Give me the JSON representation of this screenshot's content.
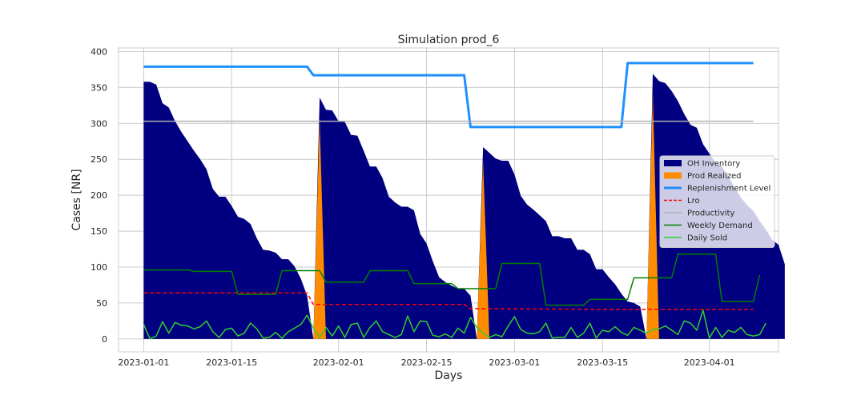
{
  "chart_data": {
    "type": "area",
    "title": "Simulation prod_6",
    "xlabel": "Days",
    "ylabel": "Cases [NR]",
    "x_start": "2023-01-01",
    "x_end": "2023-04-08",
    "xlim": [
      "2022-12-28",
      "2023-04-12"
    ],
    "ylim": [
      -18,
      405
    ],
    "xticks": [
      "2023-01-01",
      "2023-01-15",
      "2023-02-01",
      "2023-02-15",
      "2023-03-01",
      "2023-03-15",
      "2023-04-01"
    ],
    "yticks": [
      0,
      50,
      100,
      150,
      200,
      250,
      300,
      350,
      400
    ],
    "grid": true,
    "legend_position": "center-right",
    "series": [
      {
        "name": "OH Inventory",
        "kind": "area",
        "color": "#000080",
        "values": [
          358,
          358,
          354,
          328,
          322,
          303,
          288,
          275,
          262,
          250,
          236,
          209,
          198,
          198,
          185,
          170,
          167,
          160,
          140,
          124,
          123,
          120,
          111,
          111,
          101,
          84,
          60,
          0,
          336,
          319,
          318,
          303,
          302,
          284,
          283,
          262,
          240,
          240,
          224,
          198,
          190,
          184,
          184,
          179,
          146,
          133,
          108,
          86,
          79,
          74,
          70,
          70,
          60,
          0,
          267,
          259,
          251,
          248,
          248,
          229,
          199,
          187,
          180,
          172,
          164,
          143,
          143,
          140,
          140,
          124,
          124,
          118,
          97,
          97,
          86,
          76,
          63,
          52,
          50,
          45,
          0,
          369,
          359,
          356,
          345,
          331,
          313,
          298,
          294,
          271,
          258,
          245,
          240,
          226,
          211,
          197,
          186,
          178,
          164,
          152,
          138,
          131,
          104
        ]
      },
      {
        "name": "Prod Realized",
        "kind": "area",
        "color": "#FF8C00",
        "values": [
          0,
          0,
          0,
          0,
          0,
          0,
          0,
          0,
          0,
          0,
          0,
          0,
          0,
          0,
          0,
          0,
          0,
          0,
          0,
          0,
          0,
          0,
          0,
          0,
          0,
          0,
          0,
          0,
          305,
          0,
          0,
          0,
          0,
          0,
          0,
          0,
          0,
          0,
          0,
          0,
          0,
          0,
          0,
          0,
          0,
          0,
          0,
          0,
          0,
          0,
          0,
          0,
          0,
          0,
          248,
          0,
          0,
          0,
          0,
          0,
          0,
          0,
          0,
          0,
          0,
          0,
          0,
          0,
          0,
          0,
          0,
          0,
          0,
          0,
          0,
          0,
          0,
          0,
          0,
          0,
          0,
          342,
          0,
          0,
          0,
          0,
          0,
          0,
          0,
          0,
          0,
          0,
          0,
          0,
          0,
          0,
          0,
          0,
          0,
          0,
          0,
          0,
          0
        ]
      },
      {
        "name": "Replenishment Level",
        "kind": "line",
        "color": "#1E90FF",
        "points": [
          [
            "2023-01-01",
            379
          ],
          [
            "2023-01-27",
            379
          ],
          [
            "2023-01-28",
            367
          ],
          [
            "2023-02-21",
            367
          ],
          [
            "2023-02-22",
            295
          ],
          [
            "2023-03-18",
            295
          ],
          [
            "2023-03-19",
            384
          ],
          [
            "2023-04-08",
            384
          ]
        ]
      },
      {
        "name": "Lro",
        "kind": "line",
        "dashed": true,
        "color": "#FF0000",
        "points": [
          [
            "2023-01-01",
            64
          ],
          [
            "2023-01-27",
            64
          ],
          [
            "2023-01-28",
            48
          ],
          [
            "2023-02-21",
            48
          ],
          [
            "2023-02-22",
            42
          ],
          [
            "2023-03-18",
            41
          ],
          [
            "2023-04-08",
            41
          ]
        ]
      },
      {
        "name": "Productivity",
        "kind": "line",
        "color": "#B0B0B0",
        "points": [
          [
            "2023-01-01",
            303
          ],
          [
            "2023-04-08",
            303
          ]
        ]
      },
      {
        "name": "Weekly Demand",
        "kind": "line",
        "color": "#008000",
        "points": [
          [
            "2023-01-01",
            96
          ],
          [
            "2023-01-08",
            96
          ],
          [
            "2023-01-09",
            94
          ],
          [
            "2023-01-15",
            94
          ],
          [
            "2023-01-16",
            62
          ],
          [
            "2023-01-22",
            62
          ],
          [
            "2023-01-23",
            95
          ],
          [
            "2023-01-29",
            95
          ],
          [
            "2023-01-30",
            79
          ],
          [
            "2023-02-05",
            79
          ],
          [
            "2023-02-06",
            95
          ],
          [
            "2023-02-12",
            95
          ],
          [
            "2023-02-13",
            77
          ],
          [
            "2023-02-19",
            77
          ],
          [
            "2023-02-20",
            70
          ],
          [
            "2023-02-26",
            70
          ],
          [
            "2023-02-27",
            105
          ],
          [
            "2023-03-05",
            105
          ],
          [
            "2023-03-06",
            47
          ],
          [
            "2023-03-12",
            47
          ],
          [
            "2023-03-13",
            55
          ],
          [
            "2023-03-19",
            55
          ],
          [
            "2023-03-20",
            85
          ],
          [
            "2023-03-26",
            85
          ],
          [
            "2023-03-27",
            118
          ],
          [
            "2023-04-02",
            118
          ],
          [
            "2023-04-03",
            52
          ],
          [
            "2023-04-08",
            52
          ],
          [
            "2023-04-09",
            89
          ]
        ]
      },
      {
        "name": "Daily Sold",
        "kind": "line",
        "color": "#32CD32",
        "values": [
          20,
          0,
          4,
          24,
          8,
          23,
          19,
          18,
          14,
          17,
          25,
          10,
          2,
          13,
          15,
          4,
          8,
          22,
          14,
          1,
          2,
          9,
          1,
          10,
          15,
          20,
          33,
          15,
          2,
          16,
          4,
          18,
          2,
          20,
          22,
          2,
          16,
          25,
          10,
          6,
          2,
          6,
          32,
          10,
          25,
          24,
          5,
          3,
          7,
          2,
          15,
          8,
          30,
          16,
          8,
          2,
          6,
          3,
          18,
          31,
          13,
          8,
          7,
          10,
          22,
          1,
          2,
          2,
          16,
          2,
          8,
          22,
          1,
          12,
          10,
          17,
          9,
          5,
          16,
          12,
          8,
          13,
          14,
          18,
          12,
          6,
          25,
          22,
          12,
          40,
          1,
          16,
          2,
          12,
          9,
          16,
          6,
          4,
          6,
          22
        ]
      }
    ]
  }
}
